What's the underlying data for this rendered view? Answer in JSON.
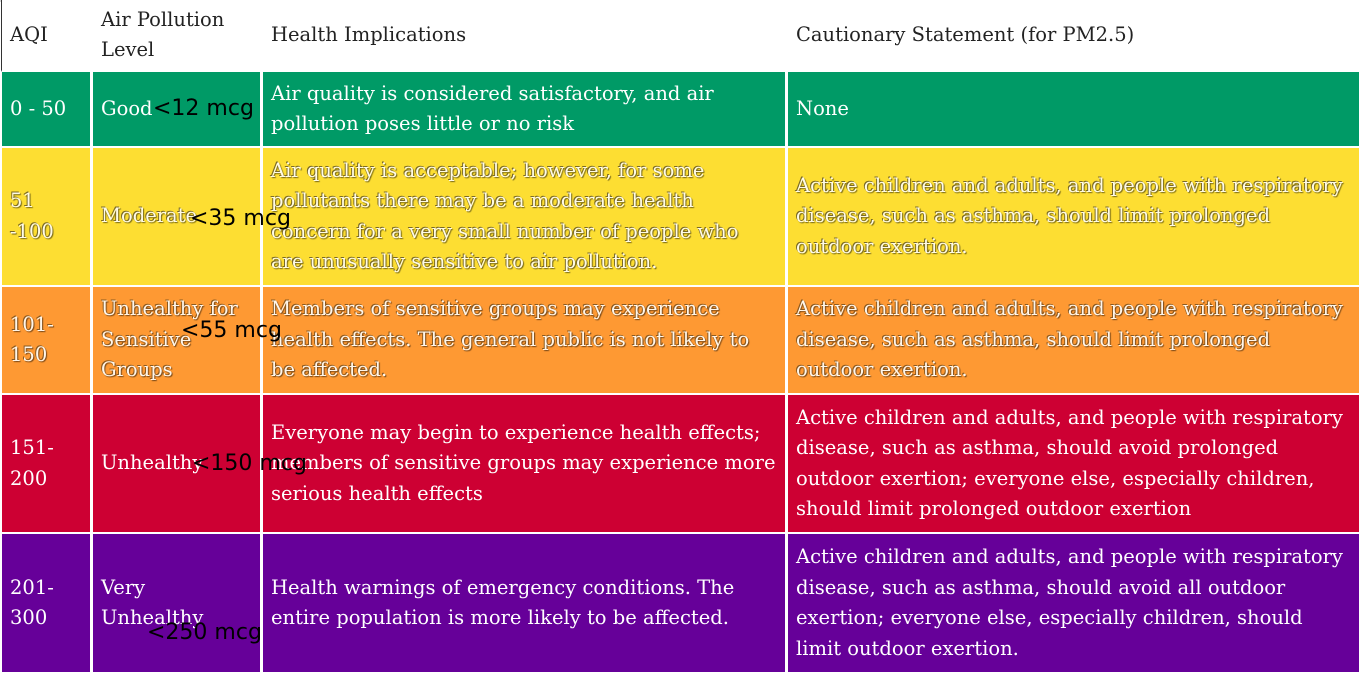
{
  "table": {
    "headers": {
      "aqi": "AQI",
      "level": "Air Pollution Level",
      "health": "Health Implications",
      "caution": "Cautionary Statement (for PM2.5)"
    },
    "rows": [
      {
        "aqi": "0 - 50",
        "level": "Good",
        "pm_note": "<12 mcg",
        "health": "Air quality is considered satisfactory, and air pollution poses little or no risk",
        "caution": "None",
        "color": "#009a66"
      },
      {
        "aqi": "51 -100",
        "level": "Moderate",
        "pm_note": "<35 mcg",
        "health": "Air quality is acceptable; however, for some pollutants there may be a moderate health concern for a very small number of people who are unusually sensitive to air pollution.",
        "caution": "Active children and adults, and people with respiratory disease, such as asthma, should limit prolonged outdoor exertion.",
        "color": "#fdde32"
      },
      {
        "aqi": "101-150",
        "level": "Unhealthy for Sensitive Groups",
        "pm_note": "<55 mcg",
        "health": "Members of sensitive groups may experience health effects. The general public is not likely to be affected.",
        "caution": "Active children and adults, and people with respiratory disease, such as asthma, should limit prolonged outdoor exertion.",
        "color": "#fe9933"
      },
      {
        "aqi": "151-200",
        "level": "Unhealthy",
        "pm_note": "<150 mcg",
        "health": "Everyone may begin to experience health effects; members of sensitive groups may experience more serious health effects",
        "caution": "Active children and adults, and people with respiratory disease, such as asthma, should avoid prolonged outdoor exertion; everyone else, especially children, should limit prolonged outdoor exertion",
        "color": "#cd0033"
      },
      {
        "aqi": "201-300",
        "level": "Very Unhealthy",
        "pm_note": "<250 mcg",
        "health": "Health warnings of emergency conditions. The entire population is more likely to be affected.",
        "caution": "Active children and adults, and people with respiratory disease, such as asthma, should avoid all outdoor exertion; everyone else, especially children, should limit outdoor exertion.",
        "color": "#660099"
      }
    ]
  }
}
